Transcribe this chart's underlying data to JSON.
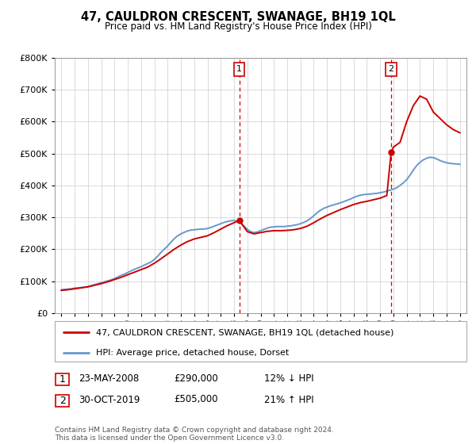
{
  "title": "47, CAULDRON CRESCENT, SWANAGE, BH19 1QL",
  "subtitle": "Price paid vs. HM Land Registry's House Price Index (HPI)",
  "legend_line1": "47, CAULDRON CRESCENT, SWANAGE, BH19 1QL (detached house)",
  "legend_line2": "HPI: Average price, detached house, Dorset",
  "annotation1_date": "23-MAY-2008",
  "annotation1_price": "£290,000",
  "annotation1_hpi": "12% ↓ HPI",
  "annotation2_date": "30-OCT-2019",
  "annotation2_price": "£505,000",
  "annotation2_hpi": "21% ↑ HPI",
  "footer": "Contains HM Land Registry data © Crown copyright and database right 2024.\nThis data is licensed under the Open Government Licence v3.0.",
  "red_color": "#cc0000",
  "blue_color": "#6699cc",
  "vline_color": "#cc0000",
  "grid_color": "#cccccc",
  "ylim": [
    0,
    800000
  ],
  "xlim_start": 1994.5,
  "xlim_end": 2025.5,
  "purchase1_x": 2008.388,
  "purchase2_x": 2019.831,
  "purchase1_y": 290000,
  "purchase2_y": 505000,
  "hpi_years": [
    1995.0,
    1995.25,
    1995.5,
    1995.75,
    1996.0,
    1996.25,
    1996.5,
    1996.75,
    1997.0,
    1997.25,
    1997.5,
    1997.75,
    1998.0,
    1998.25,
    1998.5,
    1998.75,
    1999.0,
    1999.25,
    1999.5,
    1999.75,
    2000.0,
    2000.25,
    2000.5,
    2000.75,
    2001.0,
    2001.25,
    2001.5,
    2001.75,
    2002.0,
    2002.25,
    2002.5,
    2002.75,
    2003.0,
    2003.25,
    2003.5,
    2003.75,
    2004.0,
    2004.25,
    2004.5,
    2004.75,
    2005.0,
    2005.25,
    2005.5,
    2005.75,
    2006.0,
    2006.25,
    2006.5,
    2006.75,
    2007.0,
    2007.25,
    2007.5,
    2007.75,
    2008.0,
    2008.25,
    2008.5,
    2008.75,
    2009.0,
    2009.25,
    2009.5,
    2009.75,
    2010.0,
    2010.25,
    2010.5,
    2010.75,
    2011.0,
    2011.25,
    2011.5,
    2011.75,
    2012.0,
    2012.25,
    2012.5,
    2012.75,
    2013.0,
    2013.25,
    2013.5,
    2013.75,
    2014.0,
    2014.25,
    2014.5,
    2014.75,
    2015.0,
    2015.25,
    2015.5,
    2015.75,
    2016.0,
    2016.25,
    2016.5,
    2016.75,
    2017.0,
    2017.25,
    2017.5,
    2017.75,
    2018.0,
    2018.25,
    2018.5,
    2018.75,
    2019.0,
    2019.25,
    2019.5,
    2019.75,
    2020.0,
    2020.25,
    2020.5,
    2020.75,
    2021.0,
    2021.25,
    2021.5,
    2021.75,
    2022.0,
    2022.25,
    2022.5,
    2022.75,
    2023.0,
    2023.25,
    2023.5,
    2023.75,
    2024.0,
    2024.25,
    2024.5,
    2024.75,
    2025.0
  ],
  "hpi_values": [
    73000,
    74000,
    75000,
    76000,
    78000,
    79000,
    80000,
    81000,
    83000,
    86000,
    89000,
    92000,
    95000,
    98000,
    101000,
    104000,
    108000,
    113000,
    118000,
    122000,
    127000,
    132000,
    137000,
    141000,
    145000,
    150000,
    155000,
    160000,
    168000,
    178000,
    190000,
    200000,
    210000,
    222000,
    233000,
    242000,
    248000,
    253000,
    257000,
    260000,
    261000,
    262000,
    263000,
    263000,
    265000,
    268000,
    272000,
    276000,
    280000,
    284000,
    287000,
    289000,
    290000,
    288000,
    282000,
    273000,
    262000,
    255000,
    252000,
    254000,
    258000,
    262000,
    266000,
    269000,
    270000,
    271000,
    271000,
    271000,
    272000,
    273000,
    275000,
    277000,
    280000,
    284000,
    289000,
    296000,
    305000,
    314000,
    322000,
    328000,
    332000,
    336000,
    339000,
    342000,
    345000,
    349000,
    353000,
    357000,
    362000,
    366000,
    369000,
    371000,
    372000,
    373000,
    374000,
    375000,
    377000,
    379000,
    382000,
    385000,
    388000,
    393000,
    400000,
    408000,
    418000,
    432000,
    448000,
    462000,
    472000,
    480000,
    485000,
    488000,
    487000,
    483000,
    478000,
    474000,
    471000,
    469000,
    468000,
    467000,
    466000
  ],
  "red_years": [
    1995.0,
    1995.5,
    1996.0,
    1996.5,
    1997.0,
    1997.5,
    1998.0,
    1998.5,
    1999.0,
    1999.5,
    2000.0,
    2000.5,
    2001.0,
    2001.5,
    2002.0,
    2002.5,
    2003.0,
    2003.5,
    2004.0,
    2004.5,
    2005.0,
    2005.5,
    2006.0,
    2006.5,
    2007.0,
    2007.5,
    2008.388,
    2009.0,
    2009.5,
    2010.0,
    2010.5,
    2011.0,
    2011.5,
    2012.0,
    2012.5,
    2013.0,
    2013.5,
    2014.0,
    2014.5,
    2015.0,
    2015.5,
    2016.0,
    2016.5,
    2017.0,
    2017.5,
    2018.0,
    2018.5,
    2019.0,
    2019.5,
    2019.831,
    2020.0,
    2020.5,
    2021.0,
    2021.5,
    2022.0,
    2022.5,
    2023.0,
    2023.5,
    2024.0,
    2024.5,
    2025.0
  ],
  "red_values": [
    71000,
    73000,
    76000,
    79000,
    82000,
    87000,
    92000,
    98000,
    105000,
    112000,
    120000,
    128000,
    136000,
    144000,
    156000,
    170000,
    185000,
    200000,
    213000,
    224000,
    232000,
    237000,
    242000,
    252000,
    263000,
    274000,
    290000,
    255000,
    248000,
    252000,
    256000,
    258000,
    258000,
    259000,
    261000,
    265000,
    272000,
    283000,
    295000,
    306000,
    315000,
    324000,
    332000,
    340000,
    346000,
    350000,
    355000,
    360000,
    368000,
    505000,
    520000,
    535000,
    600000,
    650000,
    680000,
    670000,
    630000,
    610000,
    590000,
    575000,
    565000
  ]
}
